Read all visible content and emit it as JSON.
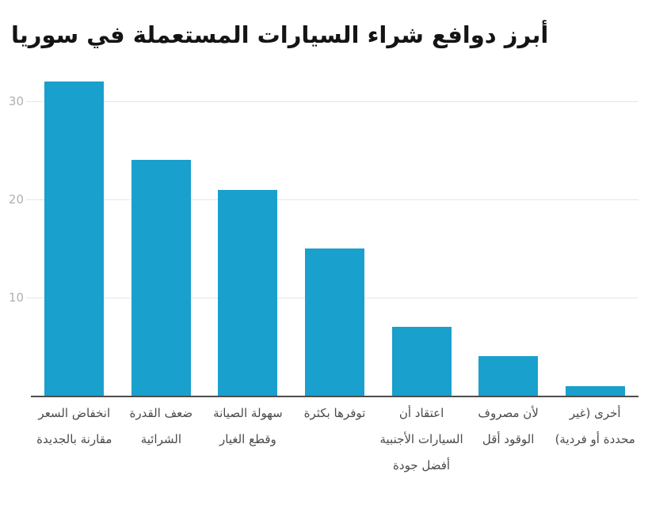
{
  "title": "أبرز دوافع شراء السيارات المستعملة في سوريا",
  "colors": {
    "bar": "#1aa0cc",
    "gridline": "#e6e6e6",
    "axis_line": "#4d4d4d",
    "y_tick_label": "#b0b0b0",
    "category_label": "#4a4a4a",
    "title": "#141414",
    "background": "#ffffff"
  },
  "chart_data": {
    "type": "bar",
    "title": "أبرز دوافع شراء السيارات المستعملة في سوريا",
    "categories": [
      "انخفاض السعر مقارنة بالجديدة",
      "ضعف القدرة الشرائية",
      "سهولة الصيانة وقطع الغيار",
      "توفرها بكثرة",
      "اعتقاد أن السيارات الأجنبية أفضل جودة",
      "لأن مصروف الوقود أقل",
      "أخرى (غير محددة أو فردية)"
    ],
    "values": [
      32,
      24,
      21,
      15,
      7,
      4,
      1
    ],
    "xlabel": "",
    "ylabel": "",
    "ylim": [
      0,
      33
    ],
    "yticks": [
      10,
      20,
      30
    ],
    "grid": true,
    "legend": "none",
    "direction": "rtl"
  }
}
